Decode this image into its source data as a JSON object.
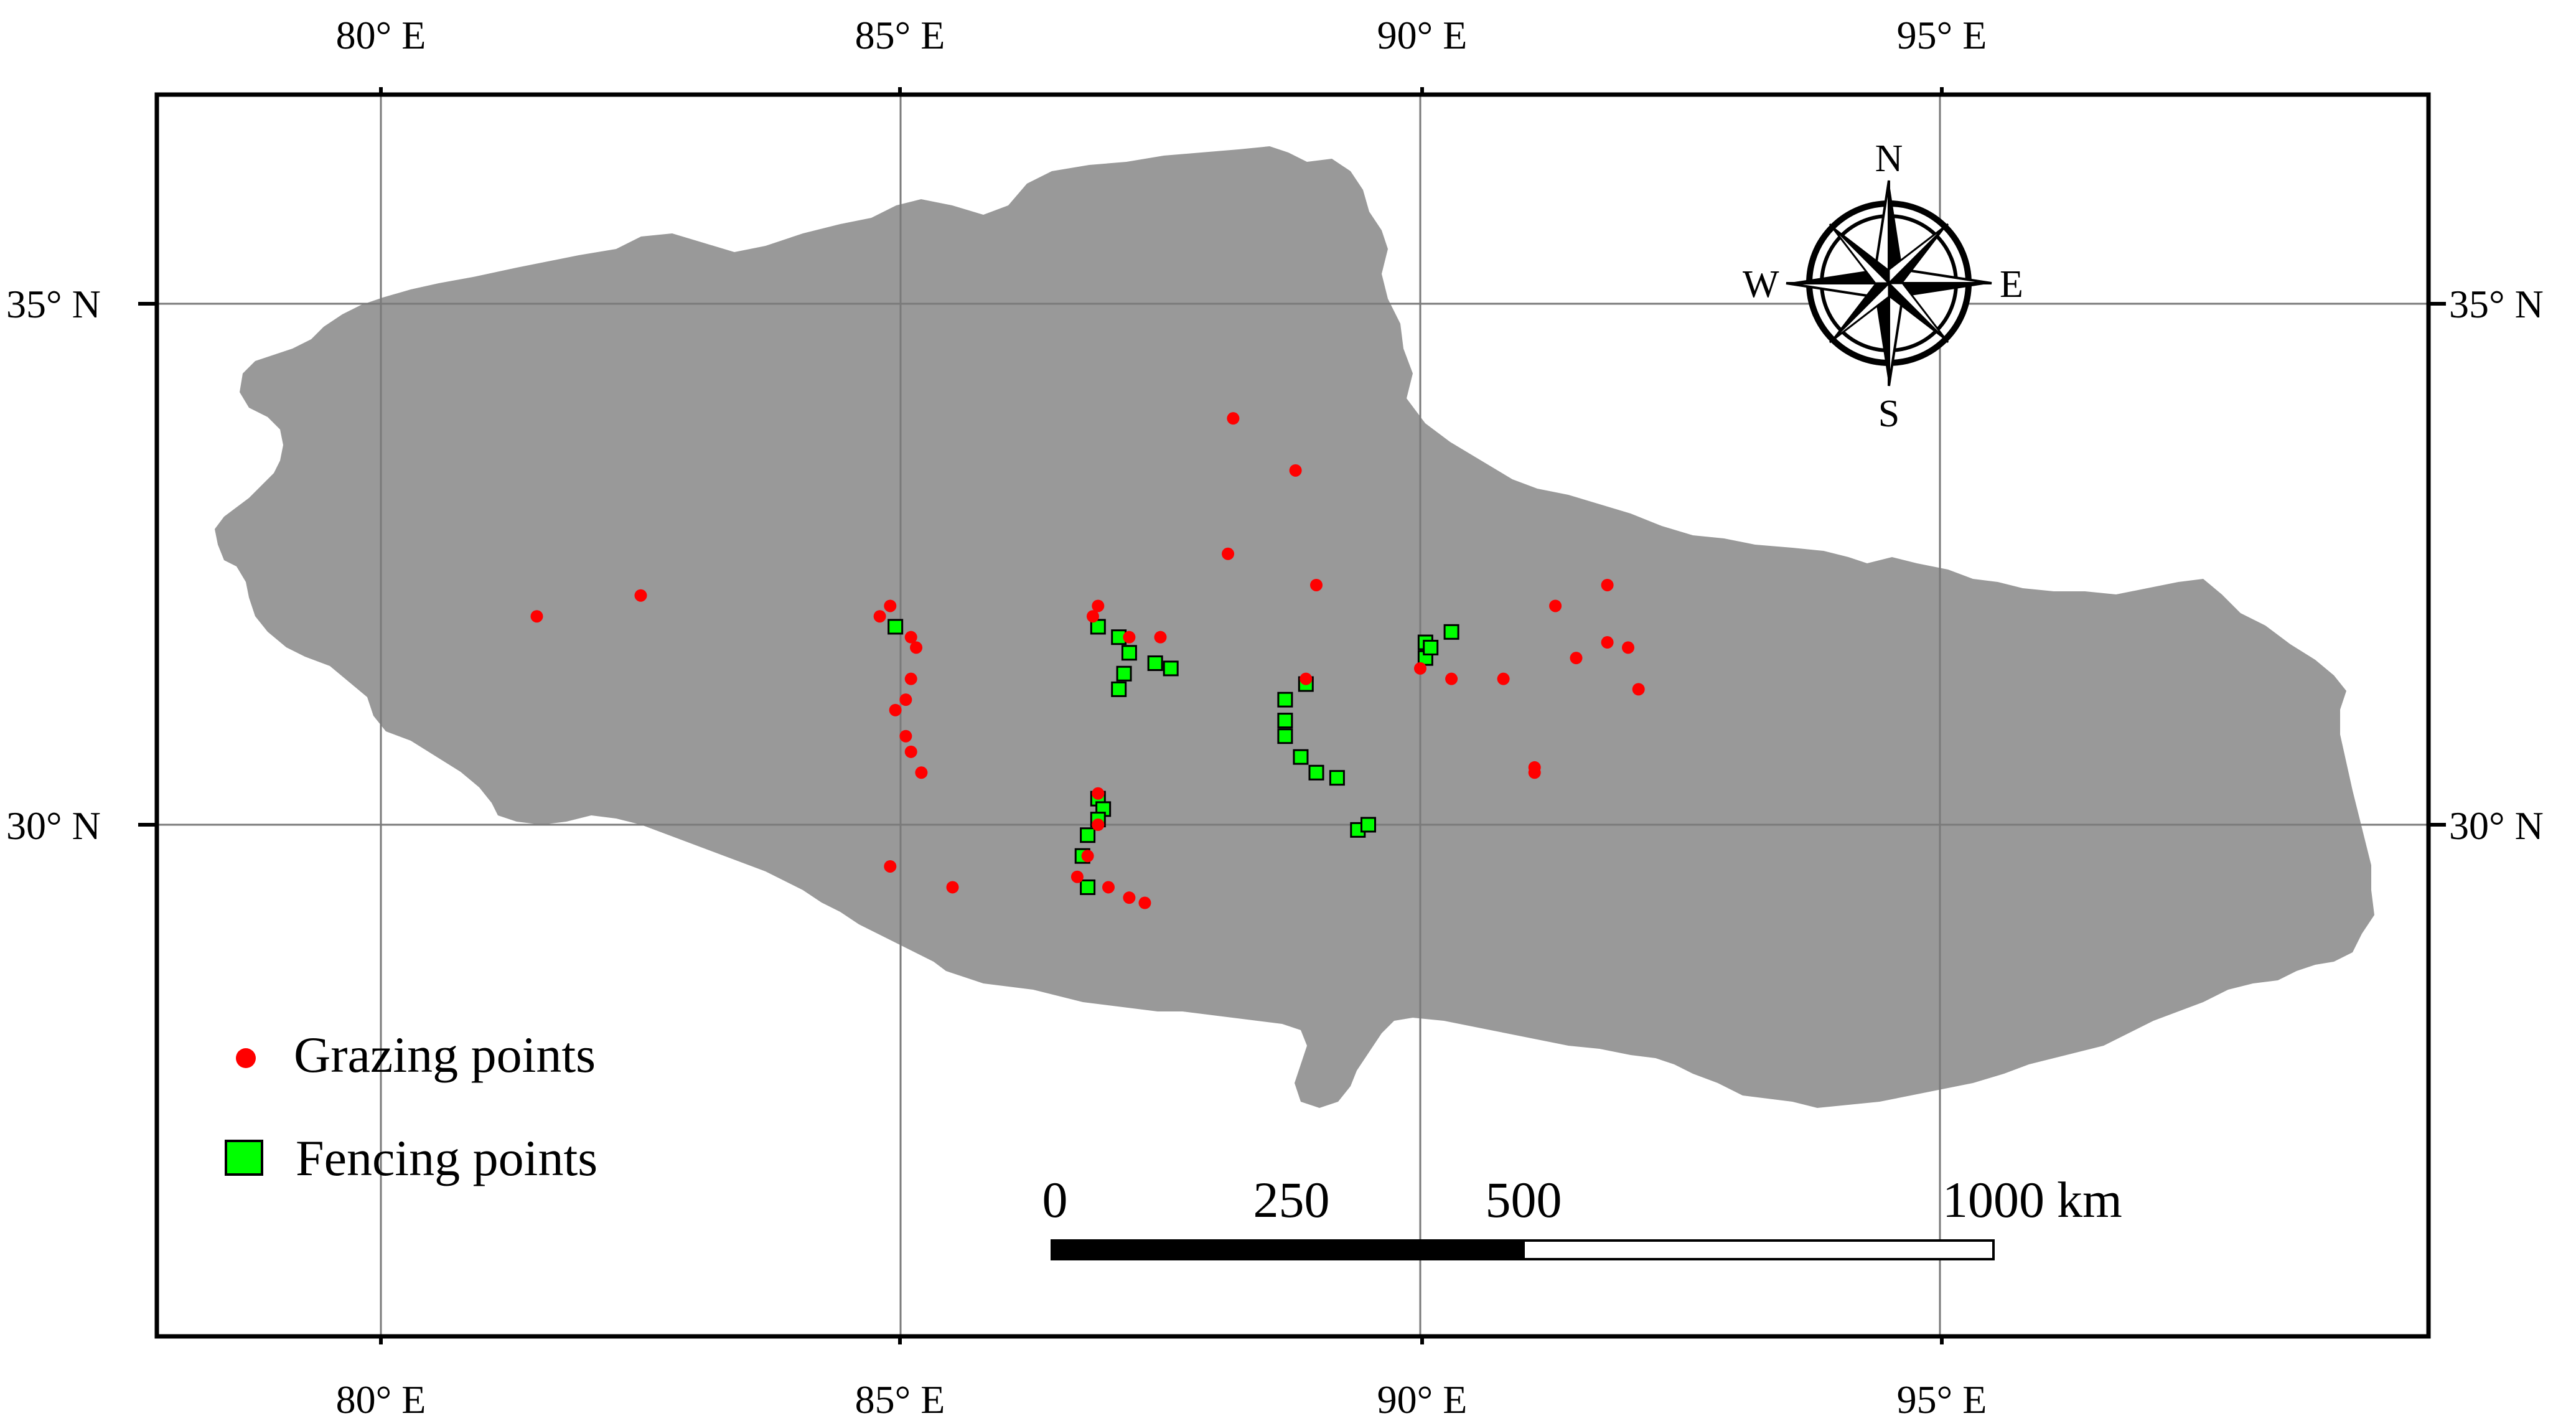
{
  "map": {
    "top_lon_labels": [
      "80° E",
      "85° E",
      "90° E",
      "95° E"
    ],
    "bottom_lon_labels": [
      "80° E",
      "85° E",
      "90° E",
      "95° E"
    ],
    "left_lat_labels": [
      "35° N",
      "30° N"
    ],
    "right_lat_labels": [
      "35° N",
      "30° N"
    ],
    "land_color": "#999999",
    "grid_color": "#7a7a7a"
  },
  "compass": {
    "n": "N",
    "s": "S",
    "e": "E",
    "w": "W"
  },
  "legend": {
    "grazing_label": "Grazing points",
    "fencing_label": "Fencing points",
    "grazing_color": "#ff0000",
    "fencing_color": "#00ff00"
  },
  "scalebar": {
    "ticks": [
      "0",
      "250",
      "500",
      "1000"
    ],
    "unit": "km"
  },
  "points": {
    "grazing": [
      [
        81.5,
        32.0
      ],
      [
        82.5,
        32.2
      ],
      [
        84.8,
        32.0
      ],
      [
        84.9,
        32.1
      ],
      [
        85.1,
        31.8
      ],
      [
        85.15,
        31.7
      ],
      [
        85.1,
        31.4
      ],
      [
        85.05,
        31.2
      ],
      [
        84.95,
        31.1
      ],
      [
        85.05,
        30.85
      ],
      [
        85.1,
        30.7
      ],
      [
        85.2,
        30.5
      ],
      [
        84.9,
        29.6
      ],
      [
        85.5,
        29.4
      ],
      [
        86.7,
        29.5
      ],
      [
        86.8,
        29.7
      ],
      [
        86.9,
        30.0
      ],
      [
        86.9,
        30.3
      ],
      [
        86.85,
        32.0
      ],
      [
        86.9,
        32.1
      ],
      [
        87.2,
        31.8
      ],
      [
        87.5,
        31.8
      ],
      [
        87.0,
        29.4
      ],
      [
        87.2,
        29.3
      ],
      [
        87.35,
        29.25
      ],
      [
        88.15,
        32.6
      ],
      [
        88.2,
        33.9
      ],
      [
        88.8,
        33.4
      ],
      [
        88.9,
        31.4
      ],
      [
        89.0,
        32.3
      ],
      [
        90.0,
        31.5
      ],
      [
        90.3,
        31.4
      ],
      [
        90.8,
        31.4
      ],
      [
        91.1,
        30.5
      ],
      [
        91.1,
        30.55
      ],
      [
        91.3,
        32.1
      ],
      [
        91.5,
        31.6
      ],
      [
        91.8,
        32.3
      ],
      [
        91.8,
        31.75
      ],
      [
        92.0,
        31.7
      ],
      [
        92.1,
        31.3
      ]
    ],
    "fencing": [
      [
        84.95,
        31.9
      ],
      [
        86.9,
        30.25
      ],
      [
        86.95,
        30.15
      ],
      [
        86.9,
        30.05
      ],
      [
        86.8,
        29.9
      ],
      [
        86.75,
        29.7
      ],
      [
        86.8,
        29.4
      ],
      [
        87.1,
        31.8
      ],
      [
        87.2,
        31.65
      ],
      [
        87.15,
        31.45
      ],
      [
        87.1,
        31.3
      ],
      [
        87.45,
        31.55
      ],
      [
        87.6,
        31.5
      ],
      [
        86.9,
        31.9
      ],
      [
        88.7,
        31.2
      ],
      [
        88.7,
        31.0
      ],
      [
        88.7,
        30.85
      ],
      [
        88.85,
        30.65
      ],
      [
        89.0,
        30.5
      ],
      [
        89.2,
        30.45
      ],
      [
        89.4,
        29.95
      ],
      [
        89.5,
        30.0
      ],
      [
        88.9,
        31.35
      ],
      [
        90.05,
        31.75
      ],
      [
        90.05,
        31.6
      ],
      [
        90.1,
        31.7
      ],
      [
        90.3,
        31.85
      ]
    ]
  }
}
